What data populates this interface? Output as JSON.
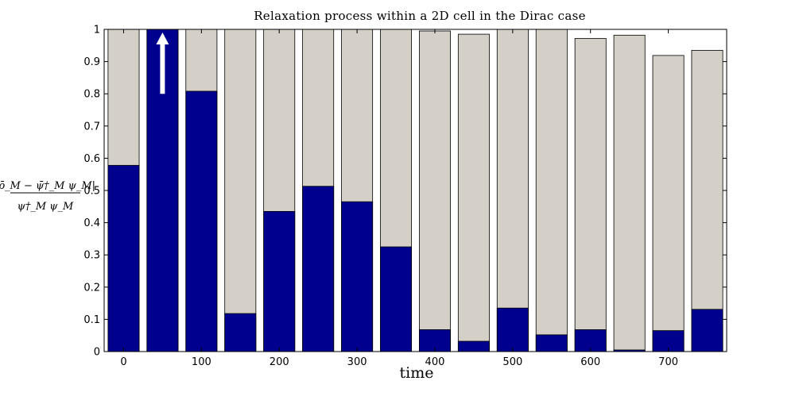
{
  "chart_data": {
    "type": "bar",
    "title": "Relaxation process within a 2D cell in the Dirac case",
    "xlabel": "time",
    "ylabel": {
      "numerator": "|ρ̄_M − ψ̄†_M ψ_M|",
      "denominator": "ψ†_M ψ_M"
    },
    "x": [
      0,
      50,
      100,
      150,
      200,
      250,
      300,
      350,
      400,
      450,
      500,
      550,
      600,
      650,
      700,
      750
    ],
    "xlim": [
      -25,
      775
    ],
    "ylim": [
      0,
      1
    ],
    "x_ticks": [
      0,
      100,
      200,
      300,
      400,
      500,
      600,
      700
    ],
    "y_ticks": [
      0,
      0.1,
      0.2,
      0.3,
      0.4,
      0.5,
      0.6,
      0.7,
      0.8,
      0.9,
      1
    ],
    "grid": false,
    "legend": "none",
    "series": [
      {
        "values": [
          1.0,
          1.0,
          1.0,
          1.0,
          1.0,
          1.0,
          1.0,
          1.0,
          0.995,
          0.985,
          1.0,
          1.0,
          0.972,
          0.982,
          0.919,
          0.935
        ],
        "color": "#d4d0c8"
      },
      {
        "values": [
          0.578,
          1.0,
          0.808,
          0.118,
          0.435,
          0.513,
          0.465,
          0.325,
          0.068,
          0.032,
          0.135,
          0.052,
          0.068,
          0.005,
          0.065,
          0.131
        ],
        "color": "#00008f"
      }
    ],
    "annotations": [
      {
        "type": "arrow",
        "direction": "up",
        "at_index": 1,
        "color": "#ffffff"
      }
    ]
  }
}
